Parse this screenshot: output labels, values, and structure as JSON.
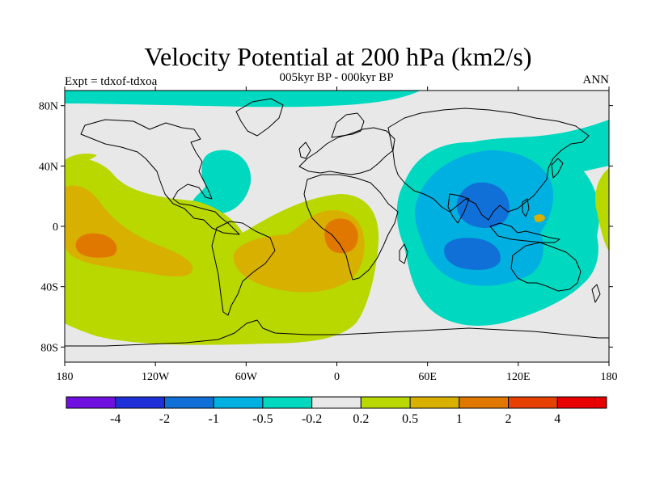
{
  "header": {
    "title": "Velocity Potential at 200 hPa (km2/s)",
    "subtitle": "005kyr BP - 000kyr BP",
    "left_string": "Expt = tdxof-tdxoa",
    "right_string": "ANN"
  },
  "map": {
    "lon_range": [
      -180,
      180
    ],
    "lat_range": [
      -90,
      90
    ],
    "lon_ticks": [
      {
        "value": -180,
        "label": "180"
      },
      {
        "value": -120,
        "label": "120W"
      },
      {
        "value": -60,
        "label": "60W"
      },
      {
        "value": 0,
        "label": "0"
      },
      {
        "value": 60,
        "label": "60E"
      },
      {
        "value": 120,
        "label": "120E"
      },
      {
        "value": 180,
        "label": "180"
      }
    ],
    "lat_ticks": [
      {
        "value": 80,
        "label": "80N"
      },
      {
        "value": 40,
        "label": "40N"
      },
      {
        "value": 0,
        "label": "0"
      },
      {
        "value": -40,
        "label": "40S"
      },
      {
        "value": -80,
        "label": "80S"
      }
    ]
  },
  "colorbar": {
    "colors": [
      "#7010e0",
      "#2030d8",
      "#1070d8",
      "#00b0e0",
      "#00d8c0",
      "#e8e8e8",
      "#b8d800",
      "#d8b000",
      "#e07800",
      "#e84000",
      "#e80000"
    ],
    "levels": [
      "-4",
      "-2",
      "-1",
      "-0.5",
      "-0.2",
      "0.2",
      "0.5",
      "1",
      "2",
      "4"
    ]
  }
}
